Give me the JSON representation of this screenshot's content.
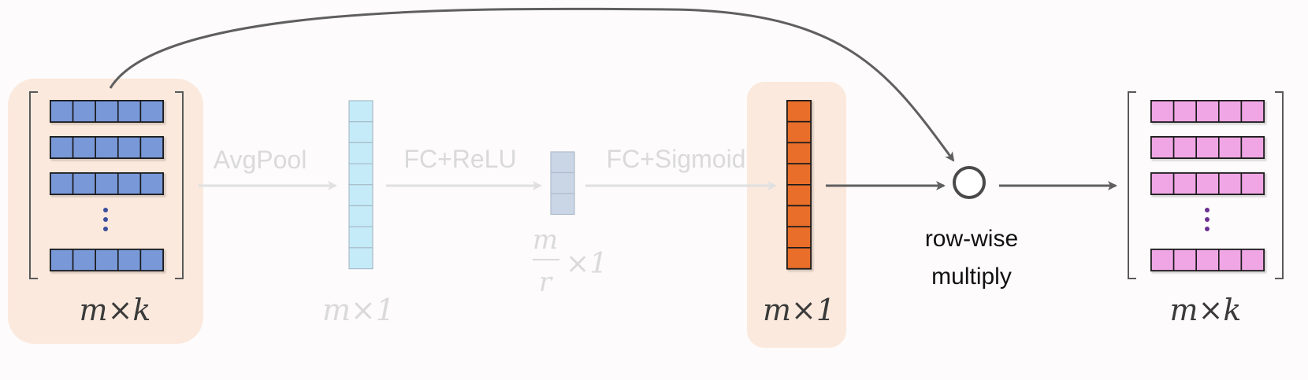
{
  "colors": {
    "background": "#fdfbfb",
    "highlight_box": "#fbe9dd",
    "input_cell": "#7898d8",
    "input_matrix_dots": "#3a4f9c",
    "output_cell": "#f0a6e4",
    "output_matrix_dots": "#6a2f92",
    "pooled_cell": "#c5ebf8",
    "pooled_border": "#a8bcc8",
    "reduced_cell": "#cad6e6",
    "reduced_border": "#b0bccc",
    "weights_cell": "#e86e2a",
    "dark_arrow": "#5f5f5f",
    "faded_arrow": "#e0e0e0",
    "faded_text": "#dadada",
    "dark_text": "#3a3a3a"
  },
  "icons": {
    "multiply_node": "circle-operator-icon",
    "flow_arrow": "arrow-right-icon"
  },
  "input_matrix": {
    "dims": "m×k"
  },
  "pooled_vector": {
    "dims": "m×1"
  },
  "reduced_vector": {
    "numerator": "m",
    "denominator": "r",
    "suffix": "×1"
  },
  "weights_vector": {
    "dims": "m×1"
  },
  "output_matrix": {
    "dims": "m×k"
  },
  "operations": {
    "pool": "AvgPool",
    "fc_relu": "FC+ReLU",
    "fc_sigmoid": "FC+Sigmoid",
    "multiply_line1": "row-wise",
    "multiply_line2": "multiply"
  }
}
